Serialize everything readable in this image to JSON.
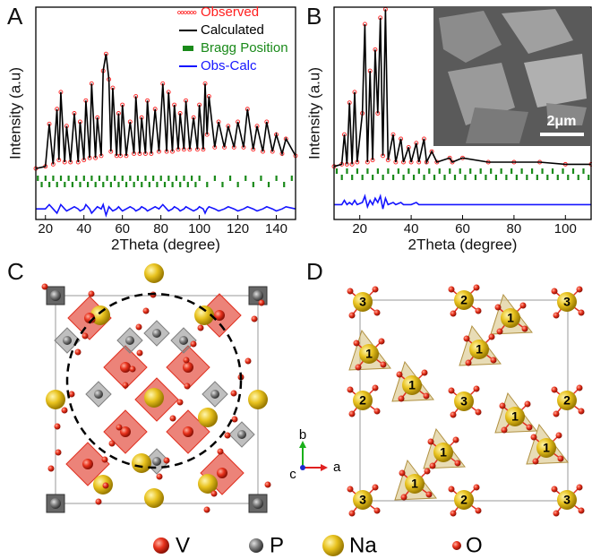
{
  "panel_labels": [
    "A",
    "B",
    "C",
    "D"
  ],
  "chart_data": [
    {
      "type": "line",
      "xlabel": "2Theta (degree)",
      "ylabel": "Intensity (a.u)",
      "xlim": [
        15,
        150
      ],
      "xticks": [
        20,
        40,
        60,
        80,
        100,
        120,
        140
      ],
      "ylim": [
        0,
        100
      ],
      "legend": "upper right",
      "x": [
        15,
        20,
        22,
        24,
        26,
        27,
        28,
        30,
        31,
        33,
        35,
        37,
        38,
        40,
        41,
        43,
        44,
        46,
        47,
        49,
        50,
        51.5,
        53,
        54,
        55,
        57,
        58,
        59,
        60,
        62,
        64,
        66,
        67,
        69,
        70,
        72,
        73,
        75,
        77,
        79,
        81,
        83,
        84,
        86,
        87,
        89,
        90,
        92,
        93,
        95,
        97,
        99,
        100,
        102,
        103,
        104,
        105,
        108,
        110,
        113,
        115,
        118,
        120,
        123,
        125,
        128,
        130,
        133,
        135,
        138,
        140,
        143,
        145,
        150
      ],
      "series": [
        {
          "name": "Observed",
          "color": "#ff2020",
          "style": "open-circles",
          "values": [
            24,
            25,
            45,
            26,
            52,
            28,
            60,
            27,
            44,
            27,
            50,
            27,
            46,
            28,
            56,
            29,
            64,
            29,
            48,
            30,
            70,
            78,
            66,
            32,
            62,
            30,
            50,
            30,
            54,
            30,
            46,
            31,
            58,
            31,
            48,
            31,
            56,
            31,
            52,
            32,
            64,
            32,
            60,
            32,
            54,
            33,
            50,
            33,
            56,
            33,
            48,
            33,
            54,
            33,
            64,
            40,
            58,
            34,
            46,
            34,
            44,
            34,
            46,
            34,
            52,
            33,
            44,
            32,
            46,
            32,
            40,
            31,
            38,
            30
          ]
        },
        {
          "name": "Calculated",
          "color": "#000000",
          "style": "line",
          "values": [
            24,
            25,
            45,
            26,
            52,
            28,
            60,
            27,
            44,
            27,
            50,
            27,
            46,
            28,
            56,
            29,
            64,
            29,
            48,
            30,
            70,
            78,
            66,
            32,
            62,
            30,
            50,
            30,
            54,
            30,
            46,
            31,
            58,
            31,
            48,
            31,
            56,
            31,
            52,
            32,
            64,
            32,
            60,
            32,
            54,
            33,
            50,
            33,
            56,
            33,
            48,
            33,
            54,
            33,
            64,
            40,
            58,
            34,
            46,
            34,
            44,
            34,
            46,
            34,
            52,
            33,
            44,
            32,
            46,
            32,
            40,
            31,
            38,
            30
          ]
        },
        {
          "name": "Bragg Position",
          "color": "#1a8a1a",
          "style": "ticks",
          "positions": [
            16,
            18,
            20,
            22,
            24,
            26,
            28,
            30,
            32,
            34,
            36,
            38,
            40,
            42,
            44,
            46,
            48,
            50,
            52,
            54,
            56,
            58,
            60,
            62,
            64,
            66,
            68,
            70,
            72,
            74,
            76,
            78,
            80,
            82,
            84,
            86,
            88,
            90,
            92,
            94,
            96,
            98,
            100,
            104,
            108,
            112,
            116,
            120,
            124,
            128,
            132,
            136,
            140,
            144,
            148
          ]
        },
        {
          "name": "Obs-Calc",
          "color": "#1515ff",
          "style": "line",
          "values": [
            5,
            5,
            7,
            5,
            3,
            5,
            7,
            5,
            4,
            5,
            6,
            5,
            4,
            5,
            7,
            5,
            3,
            5,
            6,
            5,
            7,
            2,
            6,
            5,
            4,
            5,
            6,
            5,
            4,
            5,
            6,
            5,
            4,
            5,
            6,
            5,
            4,
            5,
            6,
            5,
            7,
            5,
            4,
            5,
            6,
            5,
            4,
            5,
            6,
            5,
            4,
            5,
            6,
            5,
            3,
            5,
            6,
            5,
            4,
            5,
            6,
            5,
            4,
            5,
            6,
            5,
            4,
            5,
            6,
            5,
            4,
            5,
            6,
            5
          ]
        }
      ]
    },
    {
      "type": "line",
      "xlabel": "2Theta (degree)",
      "ylabel": "Intensity (a.u)",
      "xlim": [
        10,
        110
      ],
      "xticks": [
        20,
        40,
        60,
        80,
        100
      ],
      "ylim": [
        0,
        100
      ],
      "legend": false,
      "x": [
        10,
        13,
        14,
        15,
        16,
        17,
        18,
        19,
        21,
        22,
        23,
        24,
        25,
        26,
        27,
        28,
        29,
        30,
        31,
        33,
        34,
        36,
        37,
        39,
        40,
        42,
        43,
        45,
        46,
        48,
        50,
        55,
        56,
        60,
        70,
        80,
        90,
        100,
        110
      ],
      "series": [
        {
          "color": "#ff2020",
          "style": "open-circles",
          "values": [
            25,
            26,
            40,
            26,
            55,
            26,
            60,
            27,
            50,
            92,
            27,
            70,
            28,
            80,
            50,
            95,
            30,
            99,
            28,
            40,
            27,
            38,
            27,
            34,
            27,
            36,
            27,
            38,
            27,
            32,
            27,
            29,
            27,
            29,
            27,
            27,
            27,
            26,
            26
          ]
        },
        {
          "color": "#000000",
          "style": "line",
          "values": [
            25,
            26,
            40,
            26,
            55,
            26,
            60,
            27,
            50,
            92,
            27,
            70,
            28,
            80,
            50,
            95,
            30,
            99,
            28,
            40,
            27,
            38,
            27,
            34,
            27,
            36,
            27,
            38,
            27,
            32,
            27,
            29,
            27,
            29,
            27,
            27,
            27,
            26,
            26
          ]
        },
        {
          "color": "#1a8a1a",
          "style": "ticks",
          "positions": [
            11,
            13,
            15,
            17,
            19,
            21,
            23,
            25,
            27,
            29,
            31,
            33,
            35,
            37,
            39,
            41,
            43,
            45,
            47,
            49,
            51,
            53,
            55,
            57,
            59,
            61,
            63,
            65,
            67,
            69,
            71,
            73,
            75,
            77,
            79,
            81,
            83,
            85,
            87,
            89,
            91,
            93,
            95,
            97,
            99,
            101,
            103,
            105,
            107,
            109
          ]
        },
        {
          "color": "#1515ff",
          "style": "line",
          "values": [
            7,
            7,
            9,
            7,
            8,
            7,
            9,
            7,
            8,
            11,
            6,
            9,
            7,
            10,
            8,
            11,
            5,
            10,
            7,
            8,
            7,
            8,
            7,
            7,
            7,
            8,
            7,
            7,
            7,
            7,
            7,
            7,
            7,
            7,
            7,
            7,
            7,
            7,
            7
          ]
        }
      ]
    }
  ],
  "sem_inset": {
    "scale_bar": "2μm"
  },
  "structure_axes": [
    "a",
    "b",
    "c"
  ],
  "site_labels": [
    "1",
    "2",
    "3"
  ],
  "atom_legend": [
    "V",
    "P",
    "Na",
    "O"
  ]
}
